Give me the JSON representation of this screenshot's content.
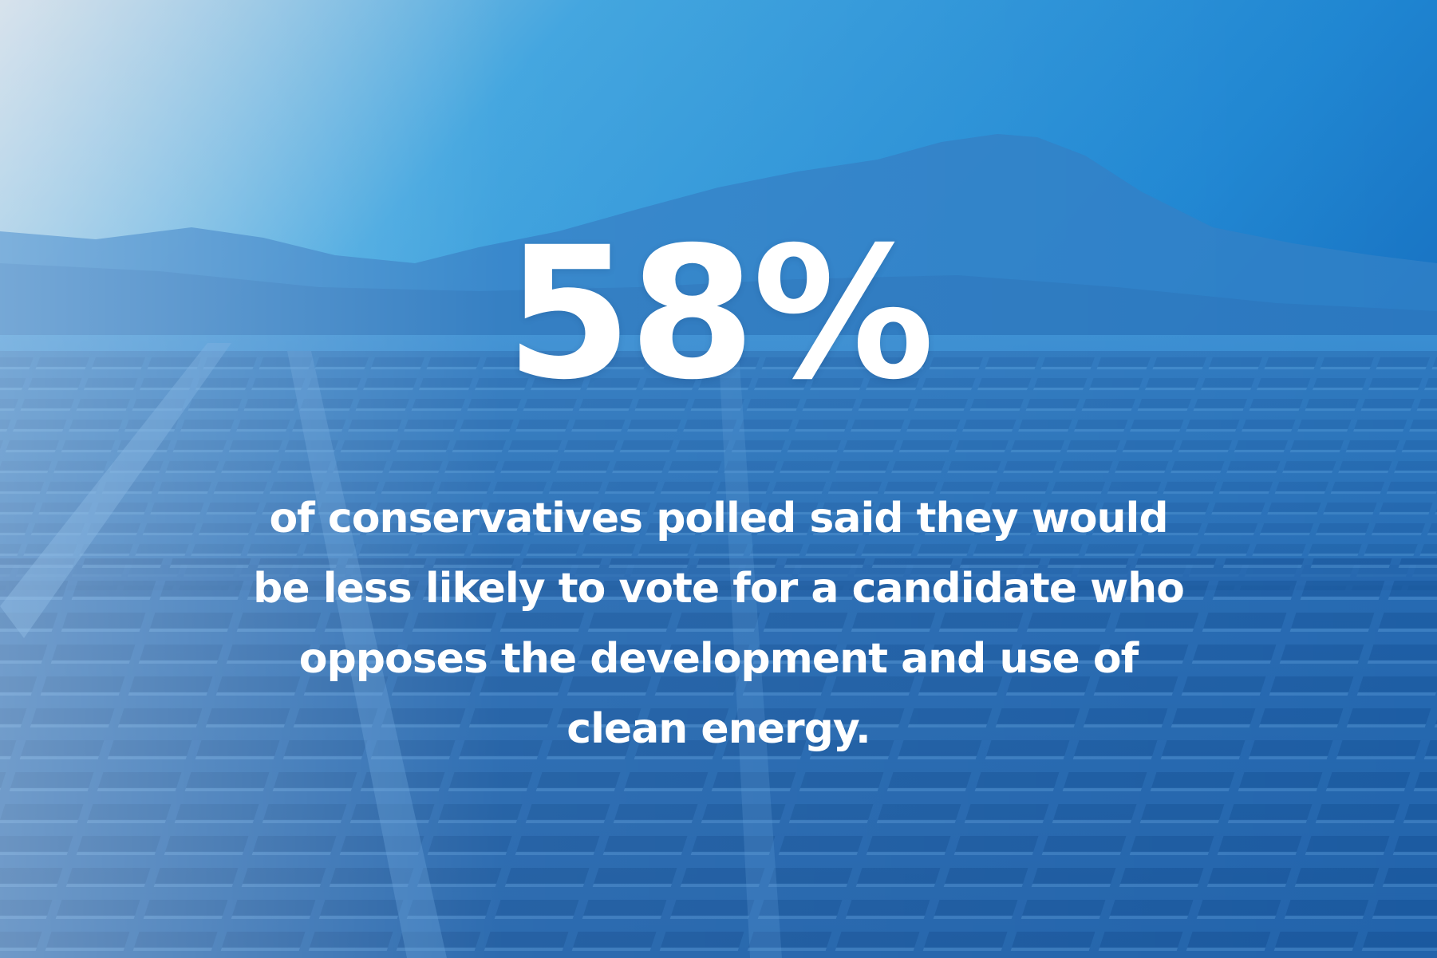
{
  "stat": {
    "value": "58%",
    "caption_lines": [
      "of conservatives polled said they would",
      "be less likely to vote for a candidate who",
      "opposes the development and use of",
      "clean energy."
    ]
  },
  "background": {
    "subject": "solar-farm-landscape",
    "colors": {
      "sky_light": "#b9cde0",
      "sky_mid": "#3aa0dc",
      "sky_deep": "#1a72c4",
      "mountain": "#2c7cc4",
      "field": "#2466ac",
      "panel": "#1d5ea6",
      "ground_strip": "#4f8fcc"
    }
  }
}
